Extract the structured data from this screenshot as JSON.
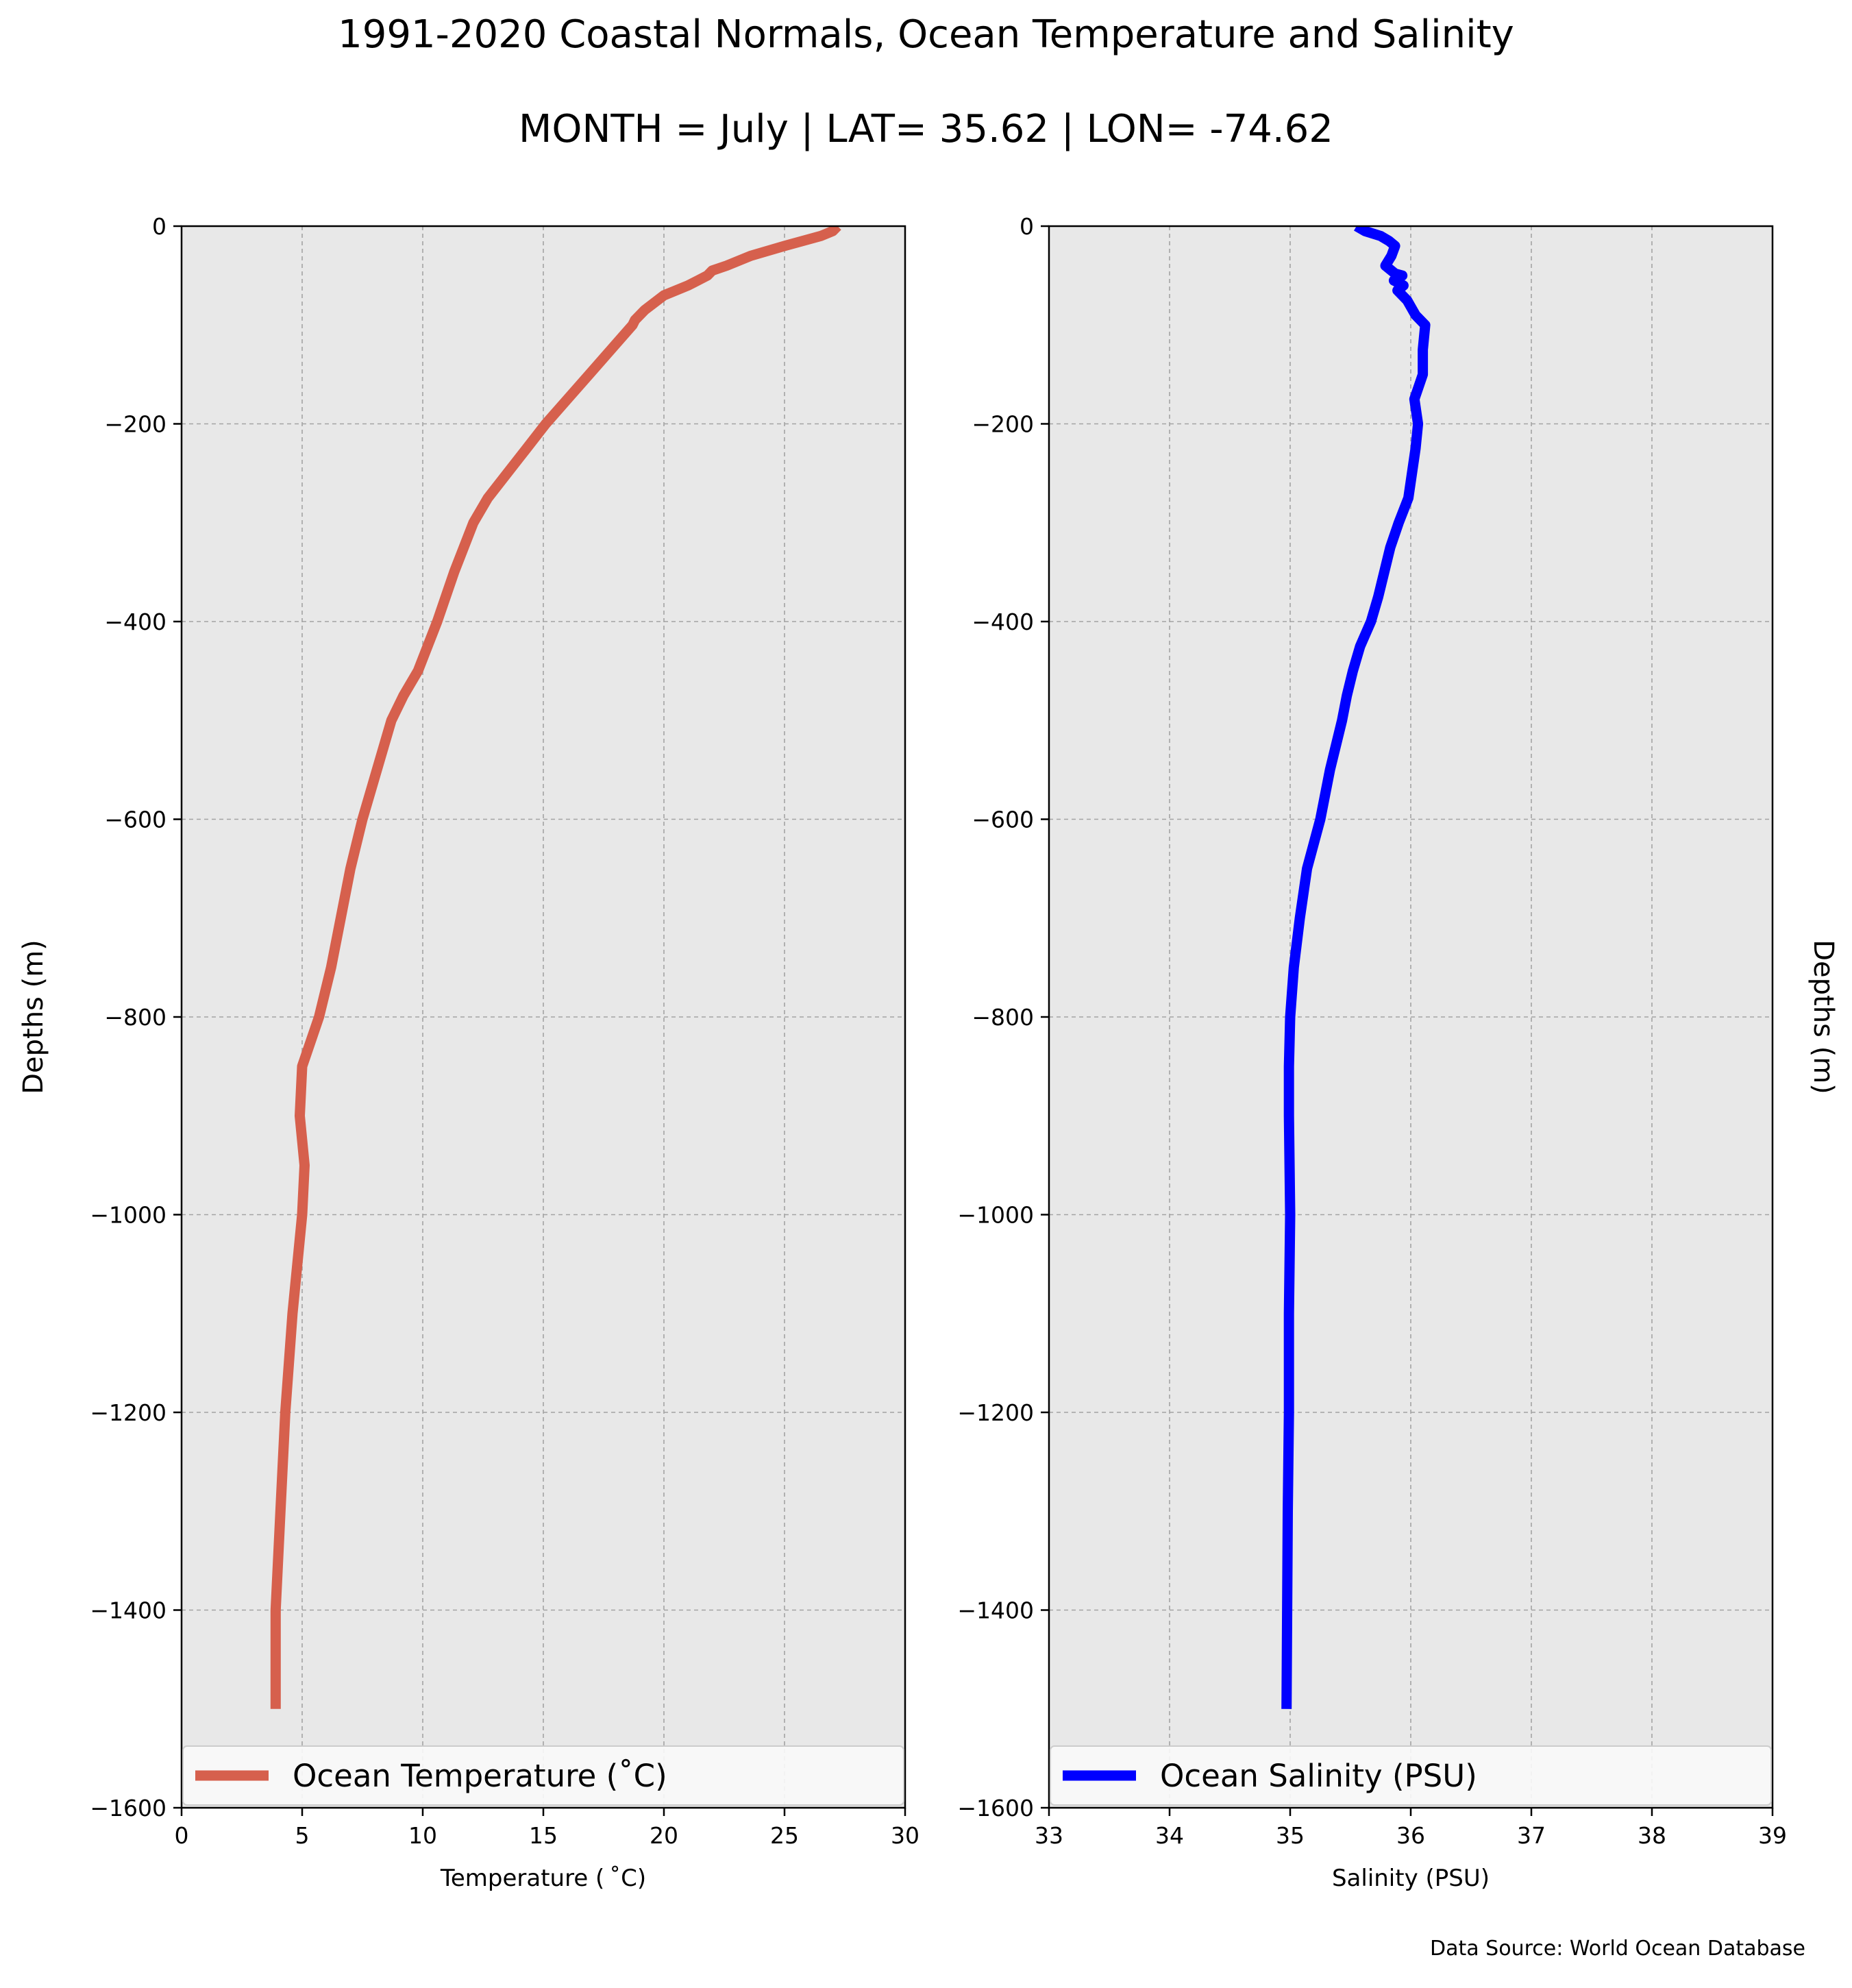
{
  "figure": {
    "title": "1991-2020 Coastal Normals, Ocean Temperature and Salinity",
    "subtitle": "MONTH = July | LAT= 35.62 | LON= -74.62",
    "source": "Data Source: World Ocean Database",
    "background": "#ffffff",
    "plot_background": "#e8e8e8",
    "grid_color": "#a3a3a3"
  },
  "chart_data": [
    {
      "type": "line",
      "xlabel": "Temperature ($^\\circ$C)",
      "xlabel_display": "Temperature ( ˚C)",
      "ylabel": "Depths (m)",
      "xlim": [
        0,
        30
      ],
      "ylim": [
        -1600,
        0
      ],
      "xticks": [
        0,
        5,
        10,
        15,
        20,
        25,
        30
      ],
      "yticks": [
        0,
        -200,
        -400,
        -600,
        -800,
        -1000,
        -1200,
        -1400,
        -1600
      ],
      "grid": true,
      "legend": "lower-center",
      "series": [
        {
          "name": "Ocean Temperature (˚C)",
          "color": "#d6604d",
          "x": [
            27.2,
            27.0,
            26.5,
            25.0,
            23.6,
            22.6,
            22.0,
            21.8,
            21.0,
            20.0,
            19.2,
            18.8,
            18.7,
            17.8,
            16.9,
            16.0,
            15.1,
            14.3,
            13.5,
            12.7,
            12.1,
            11.3,
            10.6,
            9.8,
            9.2,
            8.7,
            8.1,
            7.5,
            7.0,
            6.6,
            6.2,
            5.7,
            5.0,
            4.9,
            5.1,
            5.0,
            4.6,
            4.3,
            4.1,
            3.9,
            3.9
          ],
          "y": [
            0,
            -5,
            -10,
            -20,
            -30,
            -40,
            -45,
            -50,
            -60,
            -70,
            -85,
            -95,
            -100,
            -125,
            -150,
            -175,
            -200,
            -225,
            -250,
            -275,
            -300,
            -350,
            -400,
            -450,
            -475,
            -500,
            -550,
            -600,
            -650,
            -700,
            -750,
            -800,
            -850,
            -900,
            -950,
            -1000,
            -1100,
            -1200,
            -1300,
            -1400,
            -1500
          ]
        }
      ]
    },
    {
      "type": "line",
      "xlabel": "Salinity (PSU)",
      "ylabel": "Depths (m)",
      "xlim": [
        33,
        39
      ],
      "ylim": [
        -1600,
        0
      ],
      "xticks": [
        33,
        34,
        35,
        36,
        37,
        38,
        39
      ],
      "yticks": [
        0,
        -200,
        -400,
        -600,
        -800,
        -1000,
        -1200,
        -1400,
        -1600
      ],
      "ylabel_side": "right",
      "grid": true,
      "legend": "lower-center",
      "series": [
        {
          "name": "Ocean Salinity (PSU)",
          "color": "#0000ff",
          "x": [
            35.55,
            35.62,
            35.75,
            35.82,
            35.87,
            35.84,
            35.79,
            35.87,
            35.93,
            35.86,
            35.94,
            35.89,
            35.97,
            36.04,
            36.12,
            36.1,
            36.1,
            36.03,
            36.06,
            36.04,
            35.98,
            35.9,
            35.83,
            35.73,
            35.67,
            35.58,
            35.52,
            35.47,
            35.43,
            35.33,
            35.25,
            35.14,
            35.08,
            35.03,
            35.0,
            34.99,
            34.99,
            35.0,
            34.99,
            34.99,
            34.98,
            34.97
          ],
          "y": [
            0,
            -5,
            -10,
            -15,
            -20,
            -30,
            -40,
            -48,
            -50,
            -55,
            -60,
            -65,
            -75,
            -90,
            -100,
            -125,
            -150,
            -175,
            -200,
            -225,
            -275,
            -300,
            -325,
            -375,
            -400,
            -425,
            -450,
            -475,
            -500,
            -550,
            -600,
            -650,
            -700,
            -750,
            -800,
            -850,
            -900,
            -1000,
            -1100,
            -1200,
            -1300,
            -1500
          ]
        }
      ]
    }
  ]
}
